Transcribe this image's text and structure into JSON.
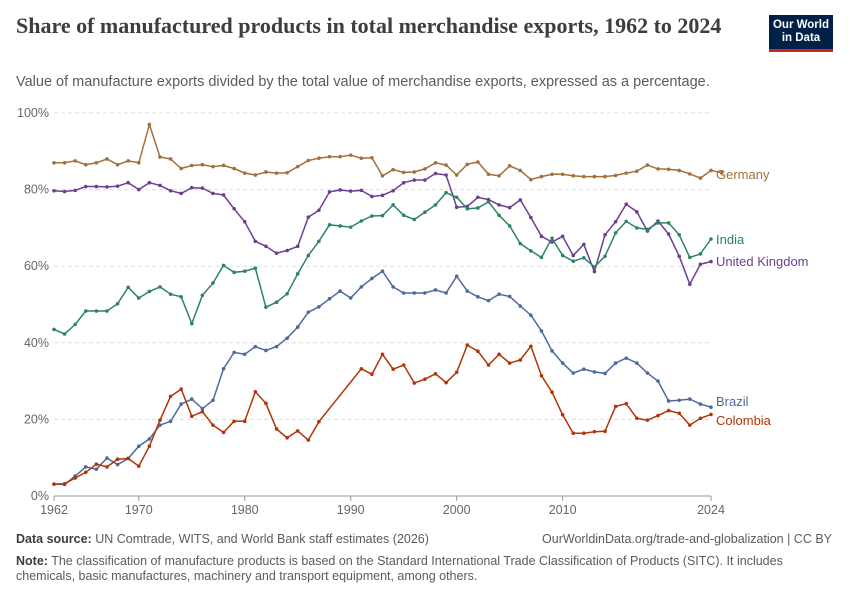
{
  "title": "Share of manufactured products in total merchandise exports, 1962 to 2024",
  "subtitle": "Value of manufacture exports divided by the total value of merchandise exports, expressed as a percentage.",
  "logo": {
    "line1": "Our World",
    "line2": "in Data",
    "bg": "#002147",
    "accent": "#ce261e"
  },
  "footer": {
    "source_label": "Data source:",
    "source": "UN Comtrade, WITS, and World Bank staff estimates (2026)",
    "url": "OurWorldinData.org/trade-and-globalization | CC BY",
    "note_label": "Note:",
    "note": "The classification of manufacture products is based on the Standard International Trade Classification of Products (SITC). It includes chemicals, basic manufactures, machinery and transport equipment, among others."
  },
  "chart_data": {
    "type": "line",
    "title": "",
    "xlabel": "",
    "ylabel": "",
    "xlim": [
      1962,
      2024
    ],
    "ylim": [
      0,
      100
    ],
    "grid": "horizontal dashed",
    "legend": "inline labels at line ends (right)",
    "xticks": [
      "1962",
      "1970",
      "1980",
      "1990",
      "2000",
      "2010",
      "2024"
    ],
    "yticks": [
      "0%",
      "20%",
      "40%",
      "60%",
      "80%",
      "100%"
    ],
    "series": [
      {
        "name": "Germany",
        "color": "#a2703c",
        "start": 1962,
        "values": [
          87,
          87,
          87.5,
          86.5,
          87,
          88,
          86.5,
          87.5,
          87,
          97,
          88.5,
          88,
          85.5,
          86.3,
          86.5,
          86,
          86.3,
          85.5,
          84.3,
          83.8,
          84.6,
          84.3,
          84.4,
          86,
          87.6,
          88.2,
          88.6,
          88.6,
          89,
          88.2,
          88.3,
          83.6,
          85.2,
          84.5,
          84.6,
          85.4,
          87,
          86.4,
          83.8,
          86.6,
          87.2,
          84,
          83.6,
          86.2,
          85,
          82.6,
          83.4,
          84,
          84,
          83.6,
          83.4,
          83.4,
          83.4,
          83.7,
          84.3,
          84.8,
          86.4,
          85.4,
          85.3,
          85,
          84.1,
          83,
          85,
          84.4
        ]
      },
      {
        "name": "United Kingdom",
        "color": "#6d3e91",
        "start": 1962,
        "values": [
          79.7,
          79.5,
          79.8,
          80.8,
          80.8,
          80.7,
          80.9,
          81.8,
          80,
          81.8,
          81.1,
          79.7,
          79,
          80.5,
          80.4,
          79,
          78.6,
          75,
          71.6,
          66.5,
          65.2,
          63.4,
          64.1,
          65.2,
          72.8,
          74.6,
          79.4,
          79.9,
          79.6,
          79.8,
          78.2,
          78.5,
          79.7,
          81.8,
          82.5,
          82.5,
          84.2,
          83.8,
          75.4,
          75.6,
          78,
          77.4,
          76,
          75.3,
          77.3,
          72.7,
          67.8,
          66.3,
          67.8,
          62.8,
          65.7,
          58.6,
          68.2,
          71.6,
          76.2,
          74.2,
          69.2,
          71.8,
          68.4,
          62.6,
          55.3,
          60.5,
          61.2
        ]
      },
      {
        "name": "India",
        "color": "#2c8465",
        "start": 1962,
        "values": [
          43.5,
          42.3,
          44.8,
          48.3,
          48.3,
          48.3,
          50.2,
          54.5,
          51.7,
          53.4,
          54.6,
          52.7,
          52,
          45,
          52.4,
          55.6,
          60.2,
          58.4,
          58.7,
          59.5,
          49.3,
          50.6,
          52.8,
          58,
          62.8,
          66.5,
          70.8,
          70.5,
          70.2,
          71.8,
          73.1,
          73.2,
          76,
          73.3,
          72.2,
          74.1,
          76,
          79.2,
          78,
          75,
          75.2,
          76.8,
          73.3,
          70.5,
          65.9,
          64,
          62.3,
          67.3,
          62.8,
          61.3,
          62.2,
          59.8,
          62.6,
          68.7,
          71.7,
          70,
          69.6,
          71.3,
          71.3,
          68.2,
          62.3,
          63.2,
          67.1
        ]
      },
      {
        "name": "Brazil",
        "color": "#4c6a9c",
        "start": 1962,
        "values": [
          3.1,
          3,
          5.2,
          7.6,
          7,
          9.9,
          8.2,
          9.8,
          13,
          14.9,
          18.5,
          19.5,
          24,
          25.3,
          22.8,
          25,
          33.2,
          37.5,
          37,
          39,
          38,
          39,
          41.2,
          44.1,
          48,
          49.4,
          51.5,
          53.5,
          51.7,
          54.6,
          56.8,
          58.7,
          54.6,
          53,
          53,
          53,
          53.8,
          53,
          57.4,
          53.5,
          52,
          51,
          52.7,
          52.1,
          49.6,
          47.2,
          43.1,
          37.9,
          34.7,
          32.1,
          33.1,
          32.4,
          32,
          34.7,
          36,
          34.7,
          32.1,
          30,
          24.8,
          25,
          25.3,
          24,
          23.2
        ]
      },
      {
        "name": "Colombia",
        "color": "#b13507",
        "start": 1962,
        "values": [
          3.1,
          3.2,
          4.7,
          6.2,
          8.3,
          7.6,
          9.6,
          9.8,
          7.8,
          13,
          19.8,
          26,
          27.9,
          20.8,
          22,
          18.5,
          16.6,
          19.5,
          19.5,
          27.2,
          24.2,
          17.5,
          15.2,
          17,
          14.6,
          19.4,
          null,
          null,
          null,
          33.2,
          31.8,
          37,
          33.1,
          34.2,
          29.5,
          30.5,
          31.9,
          29.6,
          32.3,
          39.4,
          37.8,
          34.2,
          37,
          34.7,
          35.5,
          39.1,
          31.4,
          27.1,
          21.2,
          16.4,
          16.4,
          16.8,
          16.9,
          23.4,
          24.1,
          20.3,
          19.8,
          21,
          22.3,
          21.6,
          18.5,
          20.3,
          21.3
        ]
      }
    ]
  }
}
